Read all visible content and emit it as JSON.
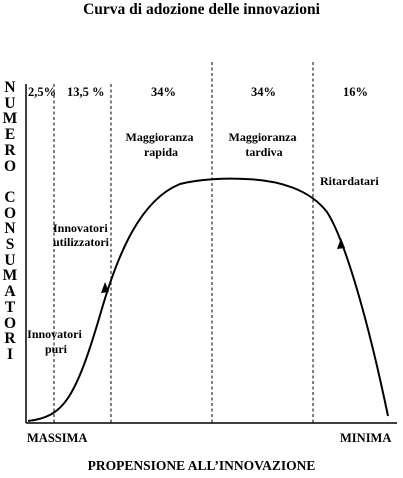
{
  "title": "Curva di adozione delle innovazioni",
  "y_label": "NUMERO CONSUMATORI",
  "x_axis": {
    "left": "MASSIMA",
    "right": "MINIMA",
    "title": "PROPENSIONE ALL’INNOVAZIONE"
  },
  "segments": [
    {
      "percent": "2,5%",
      "label": ""
    },
    {
      "percent": "13,5 %",
      "label": "Innovatori utilizzatori"
    },
    {
      "percent": "34%",
      "label": "Maggioranza rapida"
    },
    {
      "percent": "34%",
      "label": "Maggioranza tardiva"
    },
    {
      "percent": "16%",
      "label": "Ritardatari"
    }
  ],
  "extra_label": "Innovatori puri"
}
